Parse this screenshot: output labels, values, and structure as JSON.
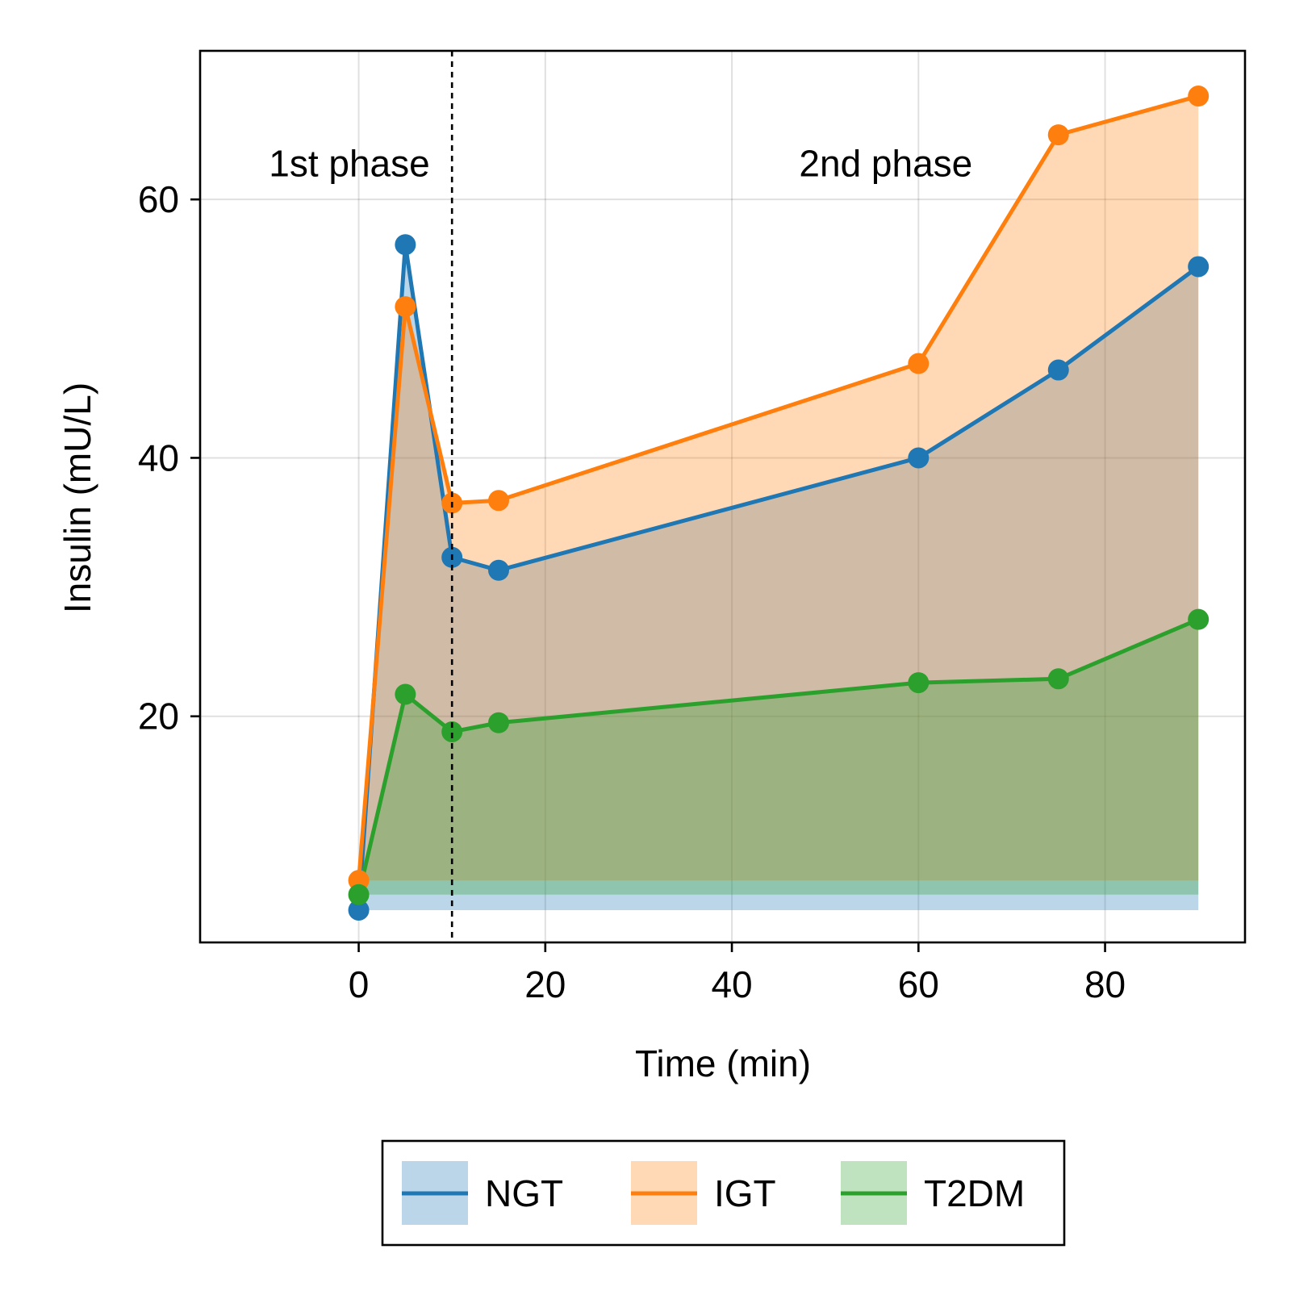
{
  "chart_data": {
    "type": "line",
    "xlabel": "Time (min)",
    "ylabel": "Insulin (mU/L)",
    "xlim": [
      -17,
      95
    ],
    "ylim": [
      2.5,
      71.5
    ],
    "xticks": [
      0,
      20,
      40,
      60,
      80
    ],
    "yticks": [
      20,
      40,
      60
    ],
    "grid": true,
    "fill_to_baseline": true,
    "legend": {
      "placement": "bottom-center, below the plot"
    },
    "phase_divider": {
      "x": 10,
      "style": "dashed"
    },
    "annotations": [
      {
        "text": "1st phase",
        "x": -1,
        "y": 61.8
      },
      {
        "text": "2nd phase",
        "x": 56.5,
        "y": 61.8
      }
    ],
    "x": [
      0,
      5,
      10,
      15,
      60,
      75,
      90
    ],
    "series": [
      {
        "name": "NGT",
        "color": "#1f77b4",
        "values": [
          5.0,
          56.5,
          32.3,
          31.3,
          40.0,
          46.8,
          54.8
        ]
      },
      {
        "name": "IGT",
        "color": "#ff7f0e",
        "values": [
          7.3,
          51.7,
          36.5,
          36.7,
          47.3,
          65.0,
          68.0
        ]
      },
      {
        "name": "T2DM",
        "color": "#2ca02c",
        "values": [
          6.2,
          21.7,
          18.8,
          19.5,
          22.6,
          22.9,
          27.5
        ]
      }
    ]
  }
}
